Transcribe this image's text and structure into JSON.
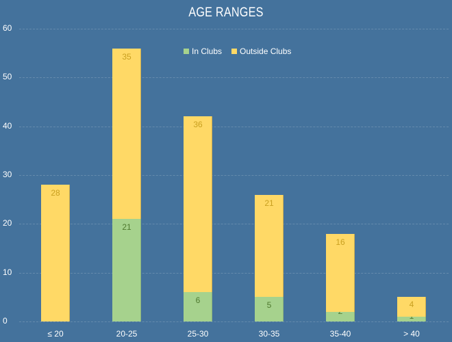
{
  "chart_data": {
    "type": "bar",
    "stacked": true,
    "title": "AGE RANGES",
    "xlabel": "",
    "ylabel": "",
    "categories": [
      "≤ 20",
      "20-25",
      "25-30",
      "30-35",
      "35-40",
      "> 40"
    ],
    "series": [
      {
        "name": "In Clubs",
        "color": "#a6d28d",
        "values": [
          0,
          21,
          6,
          5,
          2,
          1
        ]
      },
      {
        "name": "Outside Clubs",
        "color": "#ffd966",
        "values": [
          28,
          35,
          36,
          21,
          16,
          4
        ]
      }
    ],
    "ylim": [
      0,
      60
    ],
    "yticks": [
      0,
      10,
      20,
      30,
      40,
      50,
      60
    ],
    "grid": true,
    "legend_position": "top-center",
    "background": "#44729c"
  }
}
